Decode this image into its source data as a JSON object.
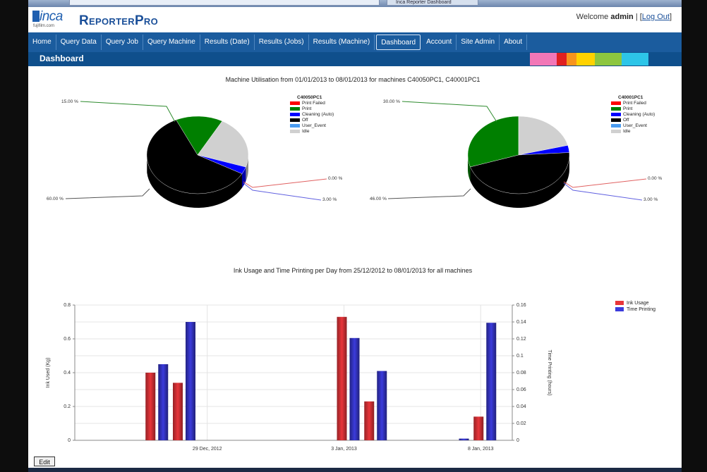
{
  "browser": {
    "address": "",
    "tab_label": "Inca Reporter Dashboard"
  },
  "header": {
    "logo_text": "inca",
    "logo_sub": "fujifilm.com",
    "brand": "ReporterPro",
    "welcome_prefix": "Welcome",
    "user": "admin",
    "logout_label": "Log Out"
  },
  "nav": {
    "items": [
      {
        "label": "Home"
      },
      {
        "label": "Query Data"
      },
      {
        "label": "Query Job"
      },
      {
        "label": "Query Machine"
      },
      {
        "label": "Results (Date)"
      },
      {
        "label": "Results (Jobs)"
      },
      {
        "label": "Results (Machine)"
      },
      {
        "label": "Dashboard"
      },
      {
        "label": "Account"
      },
      {
        "label": "Site Admin"
      },
      {
        "label": "About"
      }
    ],
    "active": "Dashboard"
  },
  "page_title": "Dashboard",
  "colors": {
    "nav_bg": "#1b5c9e",
    "title_bg": "#0f4f8c",
    "swatches": [
      "#f277b7",
      "#e02020",
      "#f7941d",
      "#ffd200",
      "#8dc63f",
      "#2dc5e8"
    ],
    "print_failed": "#ff0000",
    "print": "#007f00",
    "cleaning": "#0000ff",
    "off": "#000000",
    "user_event": "#4a9cf0",
    "idle": "#d0d0d0",
    "ink": "#e8353a",
    "time": "#3b3bdc"
  },
  "utilisation_title": "Machine Utilisation from 01/01/2013 to 08/01/2013 for machines C40050PC1, C40001PC1",
  "ink_title": "Ink Usage and Time Printing per Day from 25/12/2012 to 08/01/2013 for all machines",
  "edit_label": "Edit",
  "chart_data": [
    {
      "type": "pie",
      "legend_title": "C40050PC1",
      "labels": [
        "Print Failed",
        "Print",
        "Cleaning (Auto)",
        "Off",
        "User_Event",
        "Idle"
      ],
      "values": [
        0.0,
        15.0,
        3.0,
        60.0,
        0.0,
        22.0
      ],
      "callouts": [
        "15.00 %",
        "60.00 %",
        "0.00 %",
        "3.00 %"
      ]
    },
    {
      "type": "pie",
      "legend_title": "C40001PC1",
      "labels": [
        "Print Failed",
        "Print",
        "Cleaning (Auto)",
        "Off",
        "User_Event",
        "Idle"
      ],
      "values": [
        0.0,
        30.0,
        3.0,
        46.0,
        0.0,
        21.0
      ],
      "callouts": [
        "30.00 %",
        "46.00 %",
        "0.00 %",
        "3.00 %"
      ]
    },
    {
      "type": "bar",
      "title": "Ink Usage and Time Printing per Day from 25/12/2012 to 08/01/2013 for all machines",
      "ylabel": "Ink Used (Kg)",
      "y2label": "Time Printing (hours)",
      "ylim": [
        0,
        0.8
      ],
      "y_ticks": [
        "0",
        "0.2",
        "0.4",
        "0.6",
        "0.8"
      ],
      "y2lim": [
        0,
        0.16
      ],
      "y2_ticks": [
        "0",
        "0.02",
        "0.04",
        "0.06",
        "0.08",
        "0.1",
        "0.12",
        "0.14",
        "0.16"
      ],
      "x_ticks": [
        "29 Dec, 2012",
        "3 Jan, 2013",
        "8 Jan, 2013"
      ],
      "series": [
        {
          "name": "Ink Usage",
          "axis": "left",
          "points": [
            {
              "date": "2012-12-27",
              "value": 0.4
            },
            {
              "date": "2012-12-28",
              "value": 0.34
            },
            {
              "date": "2013-01-03",
              "value": 0.73
            },
            {
              "date": "2013-01-04",
              "value": 0.23
            },
            {
              "date": "2013-01-08",
              "value": 0.14
            }
          ]
        },
        {
          "name": "Time Printing",
          "axis": "right",
          "points": [
            {
              "date": "2012-12-27",
              "value": 0.09
            },
            {
              "date": "2012-12-28",
              "value": 0.14
            },
            {
              "date": "2013-01-03",
              "value": 0.121
            },
            {
              "date": "2013-01-04",
              "value": 0.082
            },
            {
              "date": "2013-01-07",
              "value": 0.002
            },
            {
              "date": "2013-01-08",
              "value": 0.139
            }
          ]
        }
      ]
    }
  ]
}
